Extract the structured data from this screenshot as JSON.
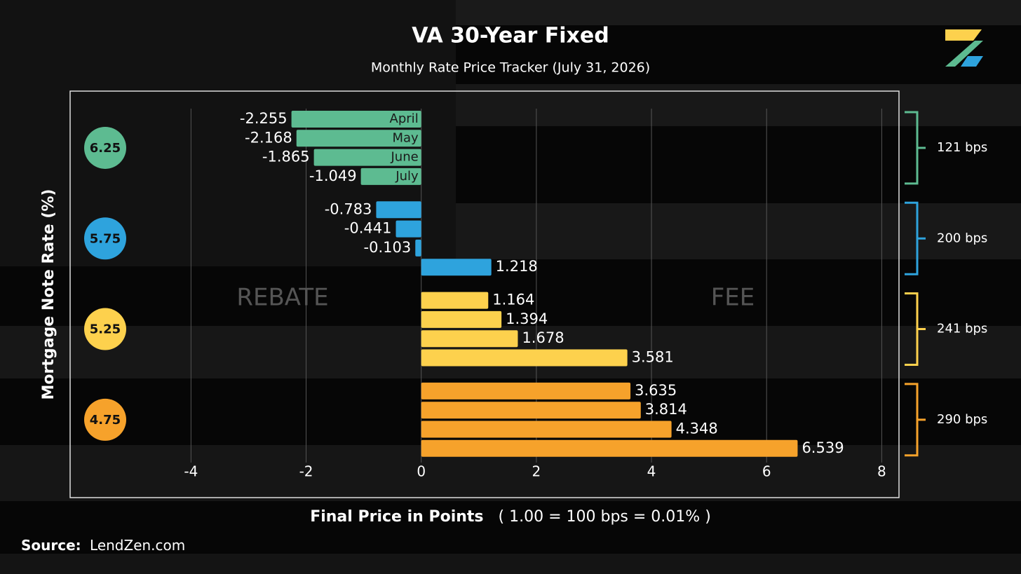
{
  "chart_data": {
    "type": "bar",
    "orientation": "horizontal",
    "title": "VA 30-Year Fixed",
    "subtitle": "Monthly Rate Price Tracker (July 31, 2026)",
    "x_label": "Final Price in Points",
    "x_label_note": "( 1.00 = 100 bps = 0.01% )",
    "y_label": "Mortgage Note Rate (%)",
    "annotations": [
      "REBATE",
      "FEE"
    ],
    "categories": [
      "April",
      "May",
      "June",
      "July"
    ],
    "groups": [
      {
        "label": "6.25",
        "color": "#5dbb91",
        "values": [
          -2.255,
          -2.168,
          -1.865,
          -1.049
        ],
        "spread": "121 bps"
      },
      {
        "label": "5.75",
        "color": "#2ea3dd",
        "values": [
          -0.783,
          -0.441,
          -0.103,
          1.218
        ],
        "spread": "200 bps"
      },
      {
        "label": "5.25",
        "color": "#fdd14d",
        "values": [
          1.164,
          1.394,
          1.678,
          3.581
        ],
        "spread": "241 bps"
      },
      {
        "label": "4.75",
        "color": "#f6a22b",
        "values": [
          3.635,
          3.814,
          4.348,
          6.539
        ],
        "spread": "290 bps"
      }
    ],
    "xlim": [
      -6.1,
      8.3
    ],
    "xticks": [
      -4,
      -2,
      0,
      2,
      4,
      6,
      8
    ],
    "grid": true
  },
  "source_label": "Source:",
  "source": "LendZen.com"
}
